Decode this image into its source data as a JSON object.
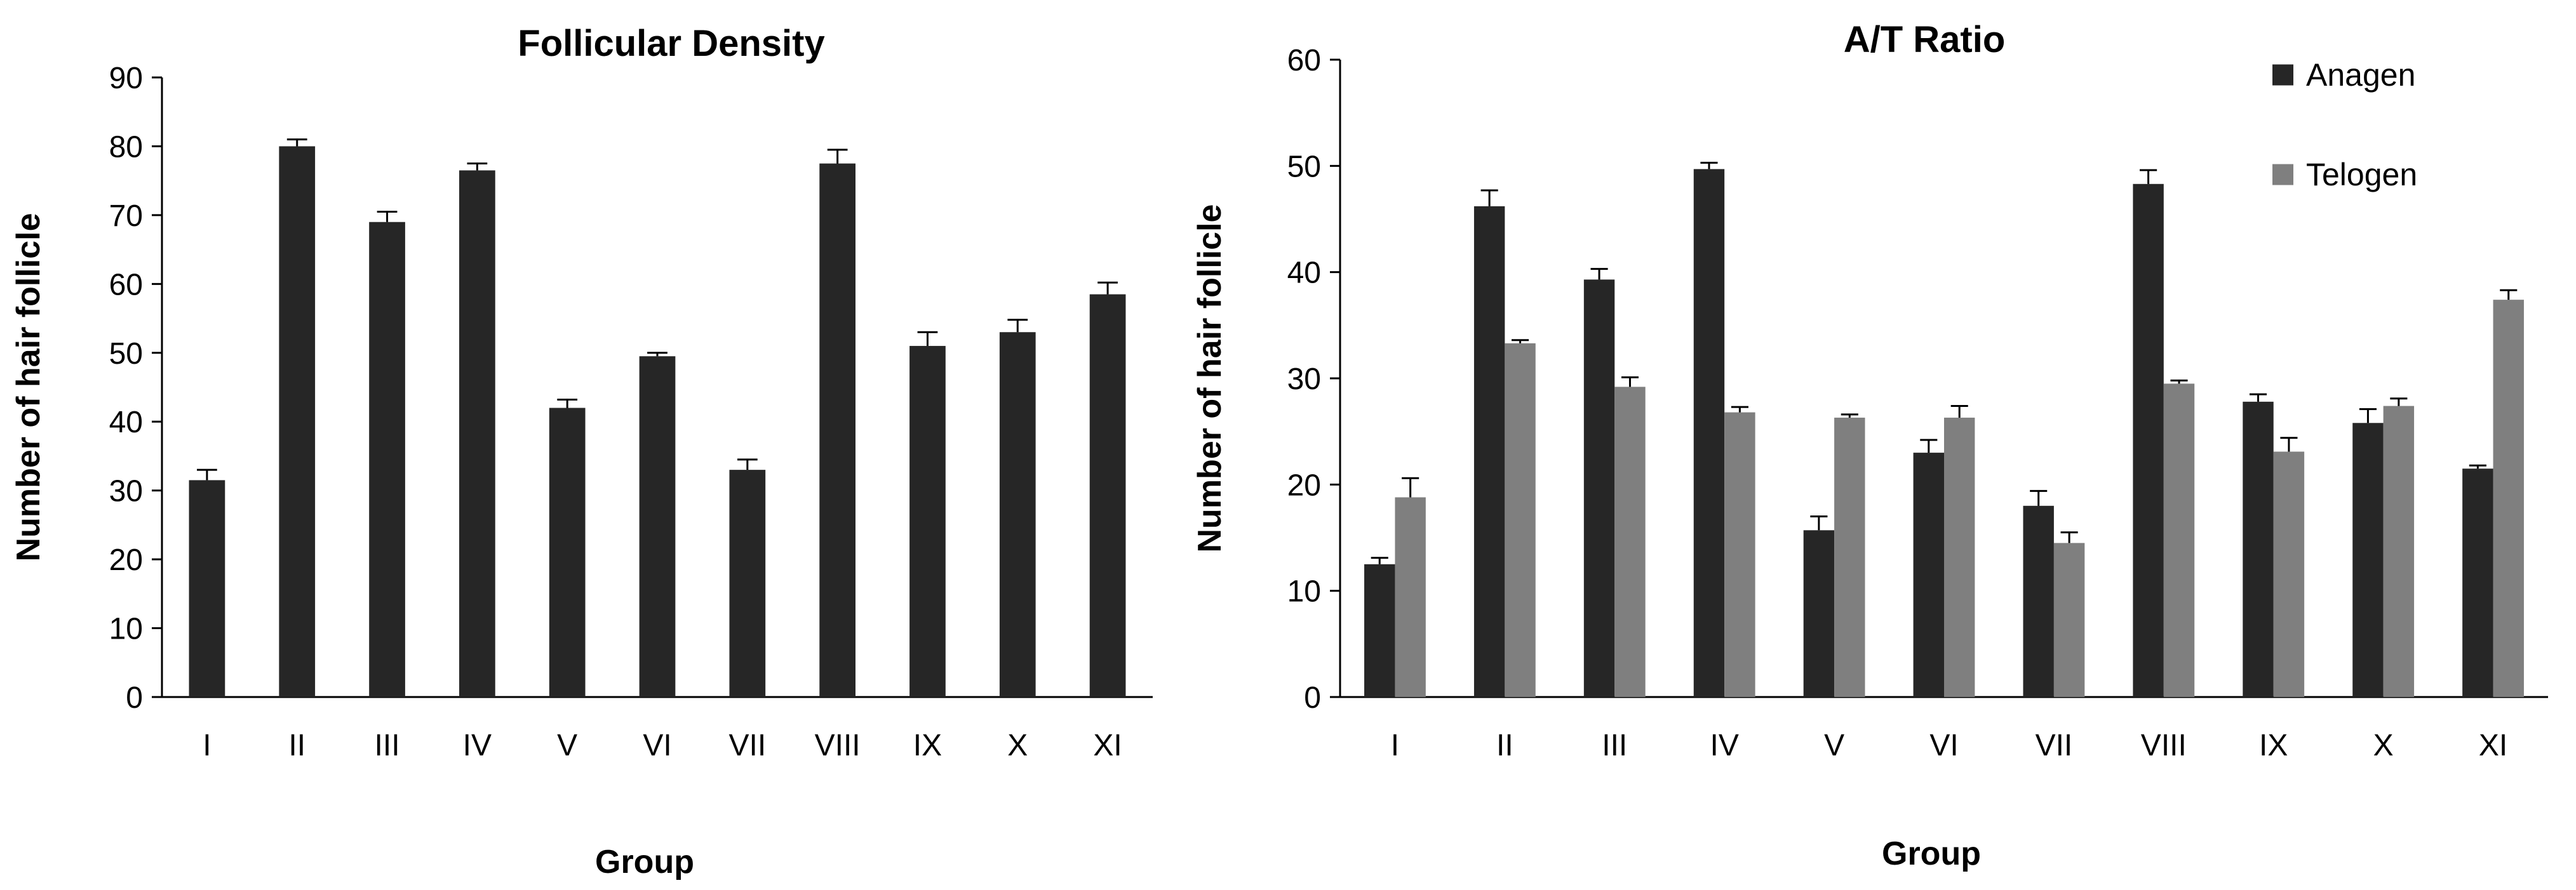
{
  "chart_data": [
    {
      "type": "bar",
      "title": "Follicular Density",
      "xlabel": "Group",
      "ylabel": "Number of hair follicle",
      "ylim": [
        0,
        90
      ],
      "yticks": [
        0,
        10,
        20,
        30,
        40,
        50,
        60,
        70,
        80,
        90
      ],
      "categories": [
        "I",
        "II",
        "III",
        "IV",
        "V",
        "VI",
        "VII",
        "VIII",
        "IX",
        "X",
        "XI"
      ],
      "grid": false,
      "series": [
        {
          "color": "#262626",
          "values": [
            31.5,
            80.0,
            69.0,
            76.5,
            42.0,
            49.5,
            33.0,
            77.5,
            51.0,
            53.0,
            58.5
          ],
          "errors": [
            1.5,
            1.0,
            1.5,
            1.0,
            1.2,
            0.5,
            1.5,
            2.0,
            2.0,
            1.8,
            1.7
          ]
        }
      ]
    },
    {
      "type": "bar",
      "title": "A/T Ratio",
      "xlabel": "Group",
      "ylabel": "Number of hair follicle",
      "ylim": [
        0,
        60
      ],
      "yticks": [
        0,
        10,
        20,
        30,
        40,
        50,
        60
      ],
      "categories": [
        "I",
        "II",
        "III",
        "IV",
        "V",
        "VI",
        "VII",
        "VIII",
        "IX",
        "X",
        "XI"
      ],
      "grid": false,
      "legend": "top-right",
      "series": [
        {
          "name": "Anagen",
          "color": "#262626",
          "values": [
            12.5,
            46.2,
            39.3,
            49.7,
            15.7,
            23.0,
            18.0,
            48.3,
            27.8,
            25.8,
            21.5
          ],
          "errors": [
            0.6,
            1.5,
            1.0,
            0.6,
            1.3,
            1.2,
            1.4,
            1.3,
            0.7,
            1.3,
            0.3
          ]
        },
        {
          "name": "Telogen",
          "color": "#7f7f7f",
          "values": [
            18.8,
            33.3,
            29.2,
            26.8,
            26.3,
            26.3,
            14.5,
            29.5,
            23.1,
            27.4,
            37.4
          ],
          "errors": [
            1.8,
            0.3,
            0.9,
            0.5,
            0.3,
            1.1,
            1.0,
            0.3,
            1.3,
            0.7,
            0.9
          ]
        }
      ]
    }
  ]
}
